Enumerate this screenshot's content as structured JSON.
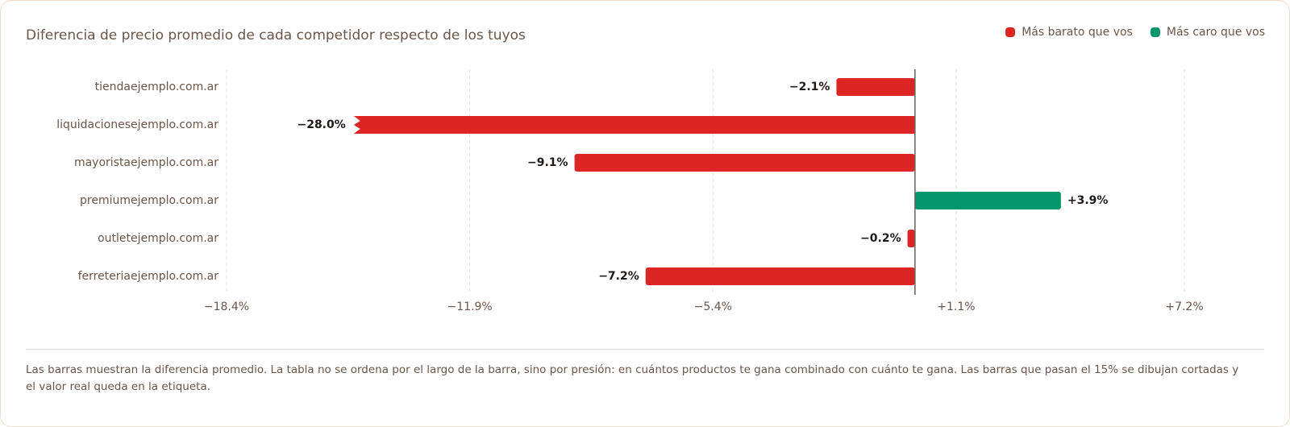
{
  "chart_data": {
    "type": "hbar",
    "title": "Diferencia de precio promedio de cada competidor respecto de los tuyos",
    "categories": [
      "tiendaejemplo.com.ar",
      "liquidacionesejemplo.com.ar",
      "mayoristaejemplo.com.ar",
      "premiumejemplo.com.ar",
      "outletejemplo.com.ar",
      "ferreteriaejemplo.com.ar"
    ],
    "series": [
      {
        "name": "Más barato que vos",
        "color": "#dc2626",
        "values": [
          -2.1,
          -28.0,
          -9.1,
          null,
          -0.2,
          -7.2
        ],
        "value_labels": [
          "−2.1%",
          "−28.0%",
          "−9.1%",
          null,
          "−0.2%",
          "−7.2%"
        ]
      },
      {
        "name": "Más caro que vos",
        "color": "#059669",
        "values": [
          null,
          null,
          null,
          3.9,
          null,
          null
        ],
        "value_labels": [
          null,
          null,
          null,
          "+3.9%",
          null,
          null
        ]
      }
    ],
    "xlim": [
      -18.4,
      7.2
    ],
    "xticks": [
      {
        "value": -18.4,
        "label": "−18.4%"
      },
      {
        "value": -11.9,
        "label": "−11.9%"
      },
      {
        "value": -5.4,
        "label": "−5.4%"
      },
      {
        "value": 1.1,
        "label": "+1.1%"
      },
      {
        "value": 7.2,
        "label": "+7.2%"
      }
    ],
    "truncate_at": 15,
    "grid": true,
    "legend": "top-right",
    "note": "Las barras muestran la diferencia promedio. La tabla no se ordena por el largo de la barra, sino por presión: en cuántos productos te gana combinado con cuánto te gana. Las barras que pasan el 15% se dibujan cortadas y el valor real queda en la etiqueta."
  }
}
